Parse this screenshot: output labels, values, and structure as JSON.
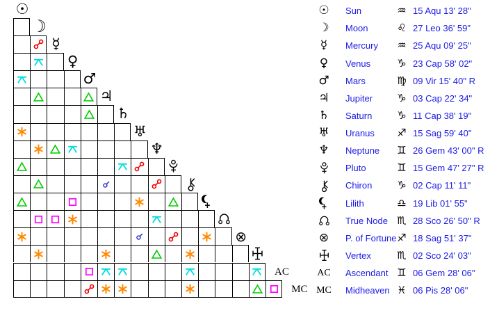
{
  "app": {
    "view_name": "aspect-grid-and-planet-positions",
    "background": "#ffffff"
  },
  "colors": {
    "text_blue": "#1a1ae6",
    "glyph_black": "#000000",
    "grid_line": "#000000"
  },
  "aspects": {
    "con": {
      "name": "conjunction",
      "color": "#2222cc"
    },
    "opp": {
      "name": "opposition",
      "color": "#ee0000"
    },
    "tri": {
      "name": "trine",
      "color": "#00cc00"
    },
    "squ": {
      "name": "square",
      "color": "#ff00ff"
    },
    "sex": {
      "name": "sextile",
      "color": "#ff8800"
    },
    "qcx": {
      "name": "quincunx",
      "color": "#00dddd"
    }
  },
  "planets": [
    {
      "name": "Sun",
      "glyph": "u:☉",
      "sign": "Aquarius",
      "sign_glyph": "♒",
      "position": "15 Aqu 13' 28\""
    },
    {
      "name": "Moon",
      "glyph": "u:☽",
      "sign": "Leo",
      "sign_glyph": "♌",
      "position": "27 Leo 36' 59\""
    },
    {
      "name": "Mercury",
      "glyph": "u:☿",
      "sign": "Aquarius",
      "sign_glyph": "♒",
      "position": "25 Aqu 09' 25\""
    },
    {
      "name": "Venus",
      "glyph": "u:♀",
      "sign": "Capricorn",
      "sign_glyph": "♑",
      "position": "23 Cap 58' 02\""
    },
    {
      "name": "Mars",
      "glyph": "u:♂",
      "sign": "Virgo",
      "sign_glyph": "♍",
      "position": "09 Vir 15' 40\" R"
    },
    {
      "name": "Jupiter",
      "glyph": "u:♃",
      "sign": "Capricorn",
      "sign_glyph": "♑",
      "position": "03 Cap 22' 34\""
    },
    {
      "name": "Saturn",
      "glyph": "u:♄",
      "sign": "Capricorn",
      "sign_glyph": "♑",
      "position": "11 Cap 38' 19\""
    },
    {
      "name": "Uranus",
      "glyph": "u:♅",
      "sign": "Sagittarius",
      "sign_glyph": "♐",
      "position": "15 Sag 59' 40\""
    },
    {
      "name": "Neptune",
      "glyph": "u:♆",
      "sign": "Gemini",
      "sign_glyph": "♊",
      "position": "26 Gem 43' 00\" R"
    },
    {
      "name": "Pluto",
      "glyph": "s:pluto",
      "sign": "Gemini",
      "sign_glyph": "♊",
      "position": "15 Gem 47' 27\" R"
    },
    {
      "name": "Chiron",
      "glyph": "s:chiron",
      "sign": "Capricorn",
      "sign_glyph": "♑",
      "position": "02 Cap 11' 11\""
    },
    {
      "name": "Lilith",
      "glyph": "s:lilith",
      "sign": "Libra",
      "sign_glyph": "♎",
      "position": "19 Lib 01' 55\""
    },
    {
      "name": "True Node",
      "glyph": "s:node",
      "sign": "Scorpio",
      "sign_glyph": "♏",
      "position": "28 Sco 26' 50\" R"
    },
    {
      "name": "P. of Fortune",
      "glyph": "u:⊗",
      "sign": "Sagittarius",
      "sign_glyph": "♐",
      "position": "18 Sag 51' 37\""
    },
    {
      "name": "Vertex",
      "glyph": "s:vertex",
      "sign": "Scorpio",
      "sign_glyph": "♏",
      "position": "02 Sco 24' 03\""
    },
    {
      "name": "Ascendant",
      "glyph": "t:AC",
      "sign": "Gemini",
      "sign_glyph": "♊",
      "position": "06 Gem 28' 06\""
    },
    {
      "name": "Midheaven",
      "glyph": "t:MC",
      "sign": "Pisces",
      "sign_glyph": "♓",
      "position": "06 Pis 28' 06\""
    }
  ],
  "aspect_grid_rows": [
    [],
    [
      null
    ],
    [
      null,
      "opp"
    ],
    [
      null,
      "qcx",
      null
    ],
    [
      "qcx",
      null,
      null,
      null
    ],
    [
      null,
      "tri",
      null,
      null,
      "tri"
    ],
    [
      null,
      null,
      null,
      null,
      "tri",
      null
    ],
    [
      "sex",
      null,
      null,
      null,
      null,
      null,
      null
    ],
    [
      null,
      "sex",
      "tri",
      "qcx",
      null,
      null,
      null,
      null
    ],
    [
      "tri",
      null,
      null,
      null,
      null,
      null,
      "qcx",
      "opp",
      null
    ],
    [
      null,
      "tri",
      null,
      null,
      null,
      "con",
      null,
      null,
      "opp",
      null
    ],
    [
      "tri",
      null,
      null,
      "squ",
      null,
      null,
      null,
      "sex",
      null,
      "tri",
      null
    ],
    [
      null,
      "squ",
      "squ",
      "sex",
      null,
      null,
      null,
      null,
      "qcx",
      null,
      null,
      null
    ],
    [
      "sex",
      null,
      null,
      null,
      null,
      null,
      null,
      "con",
      null,
      "opp",
      null,
      "sex",
      null
    ],
    [
      null,
      "sex",
      null,
      null,
      null,
      "sex",
      null,
      null,
      "tri",
      null,
      "sex",
      null,
      null,
      null
    ],
    [
      null,
      null,
      null,
      null,
      "squ",
      "qcx",
      "qcx",
      null,
      null,
      null,
      "qcx",
      null,
      null,
      null,
      "qcx"
    ],
    [
      null,
      null,
      null,
      null,
      "opp",
      "sex",
      "sex",
      null,
      null,
      null,
      "sex",
      null,
      null,
      null,
      "tri",
      "squ"
    ]
  ]
}
